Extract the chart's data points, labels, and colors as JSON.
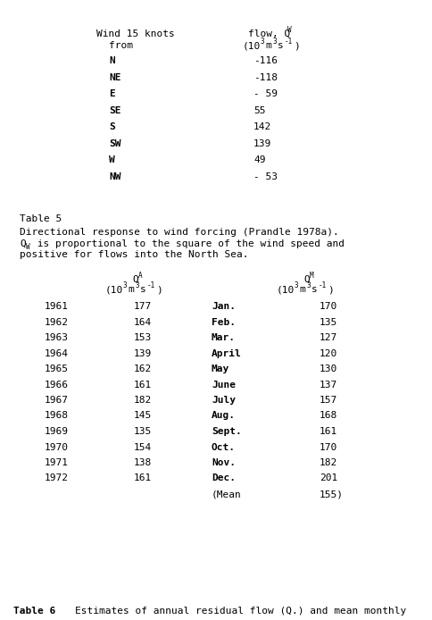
{
  "bg_color": "#ffffff",
  "top_directions": [
    "N",
    "NE",
    "E",
    "SE",
    "S",
    "SW",
    "W",
    "NW"
  ],
  "top_values": [
    "-116",
    "-118",
    "- 59",
    "55",
    "142",
    "139",
    "49",
    "- 53"
  ],
  "years": [
    "1961",
    "1962",
    "1963",
    "1964",
    "1965",
    "1966",
    "1967",
    "1968",
    "1969",
    "1970",
    "1971",
    "1972"
  ],
  "qa_values": [
    "177",
    "164",
    "153",
    "139",
    "162",
    "161",
    "182",
    "145",
    "135",
    "154",
    "138",
    "161"
  ],
  "months": [
    "Jan.",
    "Feb.",
    "Mar.",
    "April",
    "May",
    "June",
    "July",
    "Aug.",
    "Sept.",
    "Oct.",
    "Nov.",
    "Dec.",
    "(Mean"
  ],
  "qm_values": [
    "170",
    "135",
    "127",
    "120",
    "130",
    "137",
    "157",
    "168",
    "161",
    "170",
    "182",
    "201",
    "155)"
  ]
}
